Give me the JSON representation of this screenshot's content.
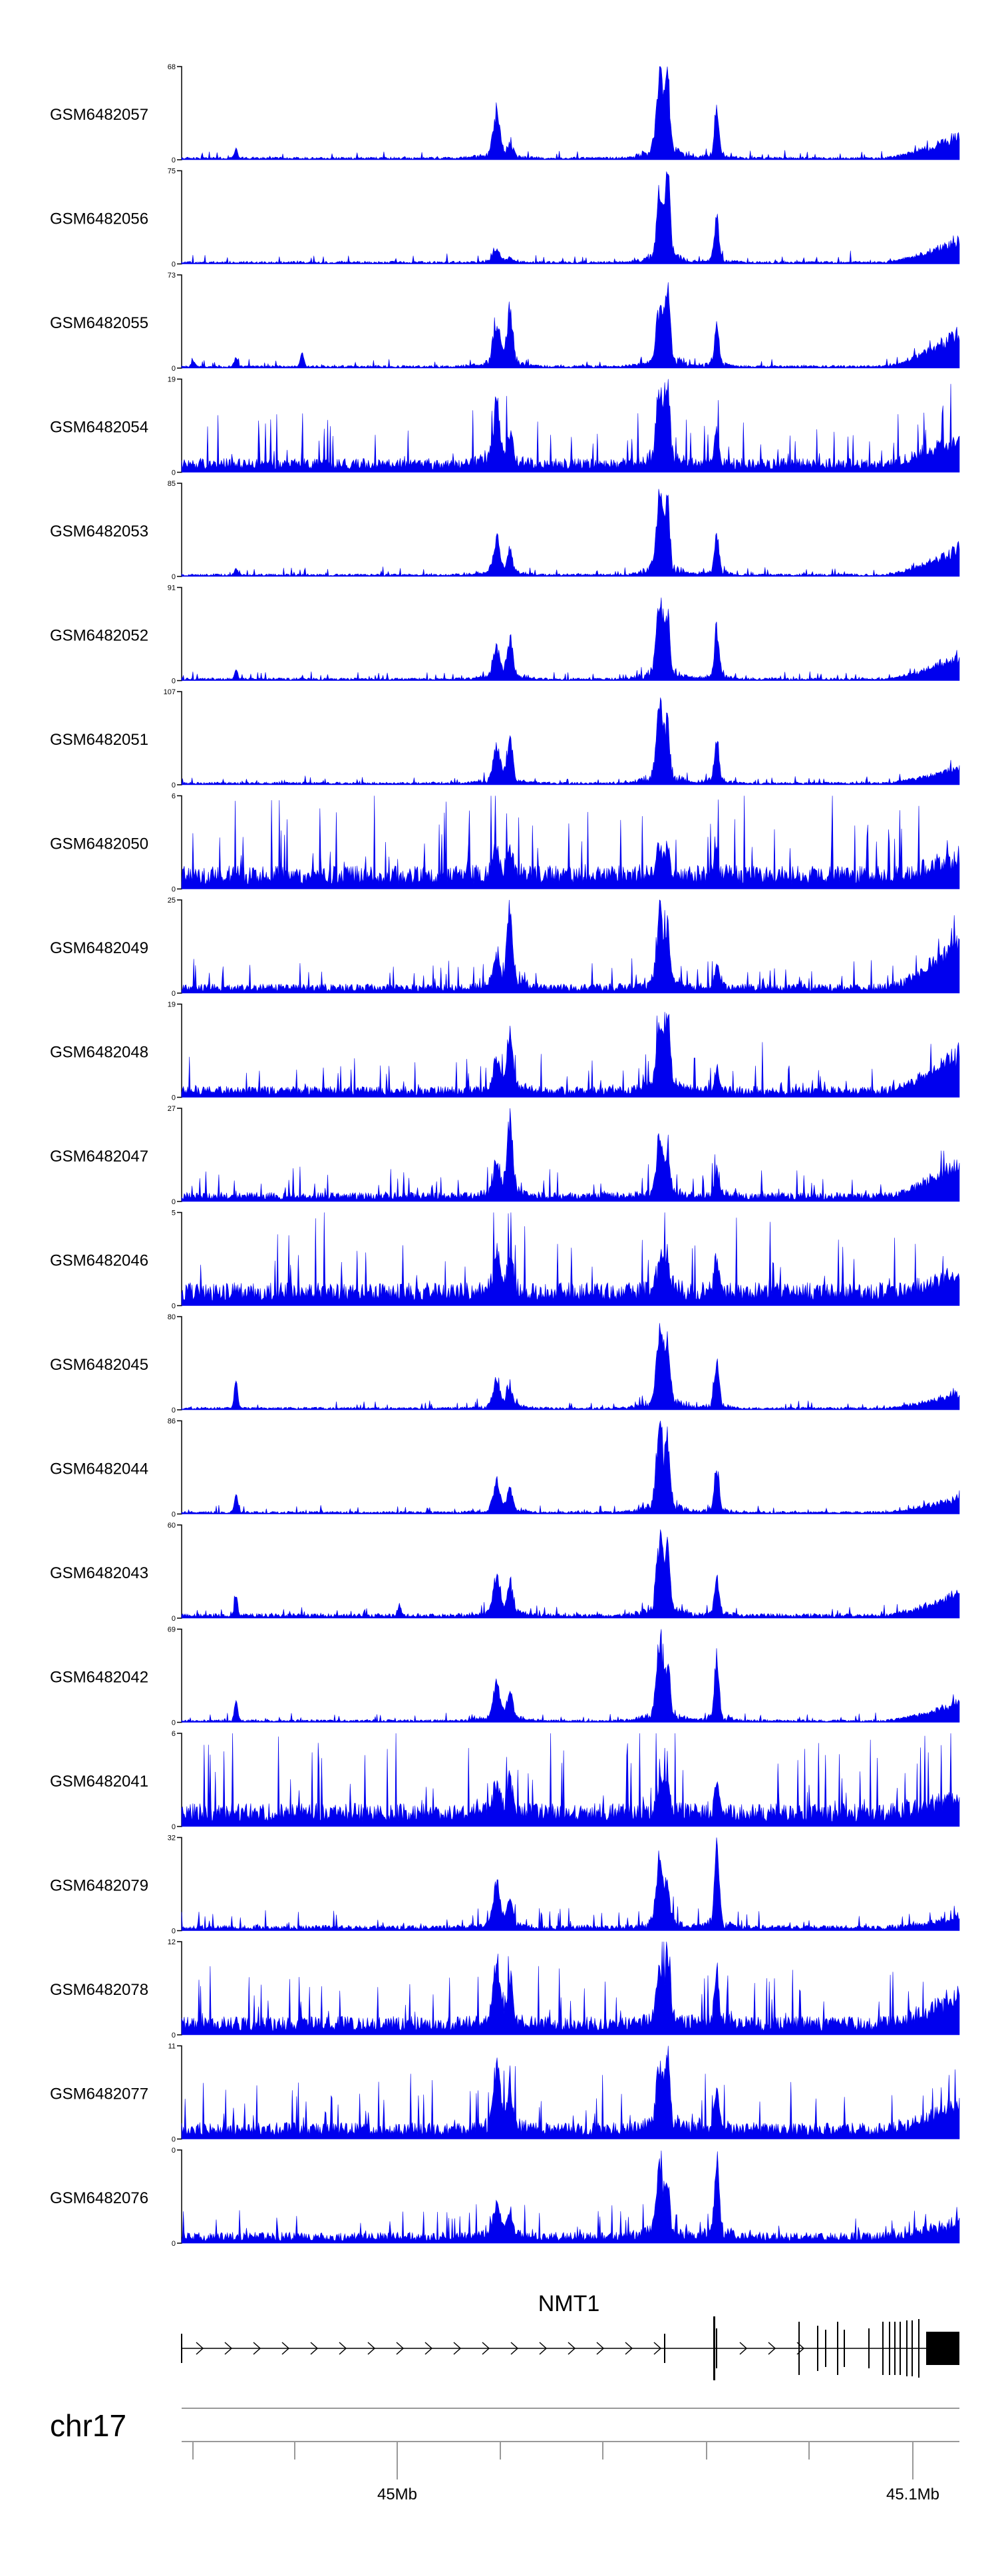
{
  "chart_data": {
    "type": "area",
    "chromosome": "chr17",
    "gene": {
      "name": "NMT1",
      "strand": "+"
    },
    "xaxis": {
      "ticks": [
        "45Mb",
        "45.1Mb"
      ]
    },
    "color": "#0000ee",
    "peaks": [
      {
        "pos": 0.405,
        "width": 0.006
      },
      {
        "pos": 0.422,
        "width": 0.005
      },
      {
        "pos": 0.615,
        "width": 0.006
      },
      {
        "pos": 0.625,
        "width": 0.004
      },
      {
        "pos": 0.688,
        "width": 0.004
      }
    ],
    "series": [
      {
        "name": "GSM6482057",
        "ymax": 68,
        "peaks": [
          0.55,
          0.15,
          1.0,
          0.95,
          0.6
        ],
        "bg": 0.03,
        "end": 0.3,
        "noise": 0.08,
        "extra": [
          [
            0.07,
            0.1
          ]
        ]
      },
      {
        "name": "GSM6482056",
        "ymax": 75,
        "peaks": [
          0.15,
          0.05,
          0.8,
          1.0,
          0.55
        ],
        "bg": 0.03,
        "end": 0.3,
        "noise": 0.08,
        "extra": []
      },
      {
        "name": "GSM6482055",
        "ymax": 73,
        "peaks": [
          0.55,
          0.65,
          0.7,
          1.0,
          0.5
        ],
        "bg": 0.03,
        "end": 0.45,
        "noise": 0.08,
        "extra": [
          [
            0.015,
            0.06
          ],
          [
            0.07,
            0.1
          ],
          [
            0.155,
            0.15
          ]
        ]
      },
      {
        "name": "GSM6482054",
        "ymax": 19,
        "peaks": [
          0.75,
          0.3,
          0.8,
          0.95,
          0.35
        ],
        "bg": 0.15,
        "end": 0.35,
        "noise": 0.6,
        "extra": []
      },
      {
        "name": "GSM6482053",
        "ymax": 85,
        "peaks": [
          0.4,
          0.3,
          0.95,
          0.75,
          0.5
        ],
        "bg": 0.03,
        "end": 0.35,
        "noise": 0.08,
        "extra": [
          [
            0.07,
            0.06
          ]
        ]
      },
      {
        "name": "GSM6482052",
        "ymax": 91,
        "peaks": [
          0.35,
          0.5,
          0.9,
          0.7,
          0.6
        ],
        "bg": 0.03,
        "end": 0.3,
        "noise": 0.08,
        "extra": [
          [
            0.07,
            0.1
          ]
        ]
      },
      {
        "name": "GSM6482051",
        "ymax": 107,
        "peaks": [
          0.4,
          0.5,
          0.95,
          0.6,
          0.55
        ],
        "bg": 0.03,
        "end": 0.22,
        "noise": 0.08,
        "extra": []
      },
      {
        "name": "GSM6482050",
        "ymax": 6,
        "peaks": [
          0.3,
          0.3,
          0.3,
          0.3,
          0.3
        ],
        "bg": 0.25,
        "end": 0.25,
        "noise": 0.9,
        "extra": []
      },
      {
        "name": "GSM6482049",
        "ymax": 25,
        "peaks": [
          0.35,
          0.95,
          0.9,
          0.6,
          0.3
        ],
        "bg": 0.1,
        "end": 0.6,
        "noise": 0.3,
        "extra": []
      },
      {
        "name": "GSM6482048",
        "ymax": 19,
        "peaks": [
          0.35,
          0.75,
          0.75,
          0.95,
          0.3
        ],
        "bg": 0.12,
        "end": 0.5,
        "noise": 0.35,
        "extra": []
      },
      {
        "name": "GSM6482047",
        "ymax": 27,
        "peaks": [
          0.4,
          0.9,
          0.65,
          0.55,
          0.3
        ],
        "bg": 0.1,
        "end": 0.45,
        "noise": 0.3,
        "extra": []
      },
      {
        "name": "GSM6482046",
        "ymax": 5,
        "peaks": [
          0.4,
          0.4,
          0.4,
          0.4,
          0.4
        ],
        "bg": 0.25,
        "end": 0.25,
        "noise": 0.9,
        "extra": []
      },
      {
        "name": "GSM6482045",
        "ymax": 80,
        "peaks": [
          0.35,
          0.25,
          0.95,
          0.75,
          0.6
        ],
        "bg": 0.03,
        "end": 0.2,
        "noise": 0.08,
        "extra": [
          [
            0.07,
            0.3
          ]
        ]
      },
      {
        "name": "GSM6482044",
        "ymax": 86,
        "peaks": [
          0.35,
          0.3,
          0.95,
          0.8,
          0.55
        ],
        "bg": 0.03,
        "end": 0.2,
        "noise": 0.08,
        "extra": [
          [
            0.07,
            0.2
          ]
        ]
      },
      {
        "name": "GSM6482043",
        "ymax": 60,
        "peaks": [
          0.45,
          0.4,
          0.95,
          0.75,
          0.45
        ],
        "bg": 0.05,
        "end": 0.3,
        "noise": 0.1,
        "extra": [
          [
            0.07,
            0.2
          ],
          [
            0.28,
            0.12
          ]
        ]
      },
      {
        "name": "GSM6482042",
        "ymax": 69,
        "peaks": [
          0.45,
          0.35,
          0.95,
          0.6,
          0.75
        ],
        "bg": 0.03,
        "end": 0.25,
        "noise": 0.08,
        "extra": [
          [
            0.07,
            0.22
          ]
        ]
      },
      {
        "name": "GSM6482041",
        "ymax": 6,
        "peaks": [
          0.35,
          0.35,
          0.35,
          0.35,
          0.35
        ],
        "bg": 0.25,
        "end": 0.25,
        "noise": 0.9,
        "extra": []
      },
      {
        "name": "GSM6482079",
        "ymax": 32,
        "peaks": [
          0.55,
          0.3,
          0.85,
          0.4,
          0.95
        ],
        "bg": 0.06,
        "end": 0.12,
        "noise": 0.2,
        "extra": []
      },
      {
        "name": "GSM6482078",
        "ymax": 12,
        "peaks": [
          0.7,
          0.5,
          0.65,
          0.85,
          0.6
        ],
        "bg": 0.2,
        "end": 0.4,
        "noise": 0.6,
        "extra": []
      },
      {
        "name": "GSM6482077",
        "ymax": 11,
        "peaks": [
          0.75,
          0.5,
          0.8,
          0.95,
          0.5
        ],
        "bg": 0.18,
        "end": 0.35,
        "noise": 0.55,
        "extra": []
      },
      {
        "name": "GSM6482076",
        "ymax": 0,
        "peaks": [
          0.4,
          0.3,
          0.9,
          0.5,
          0.95
        ],
        "bg": 0.12,
        "end": 0.2,
        "noise": 0.3,
        "extra": []
      }
    ]
  }
}
